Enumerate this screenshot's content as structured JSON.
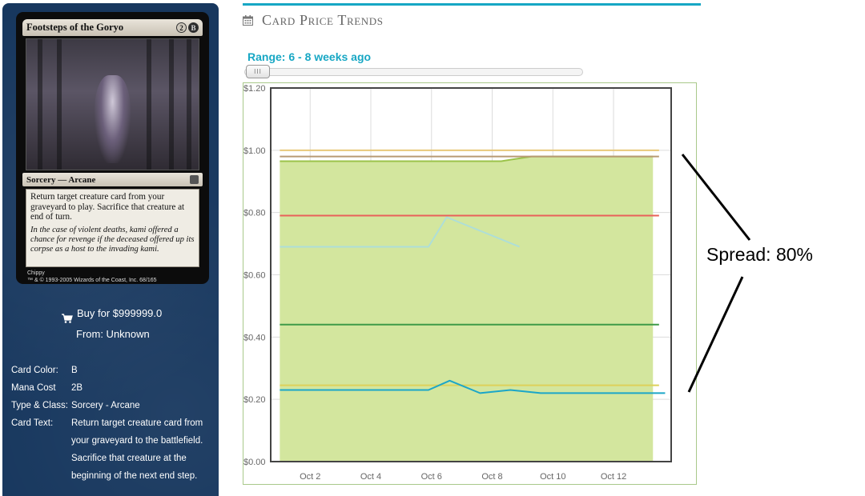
{
  "card": {
    "name": "Footsteps of the Goryo",
    "mana_symbols": [
      "2",
      "B"
    ],
    "type_line": "Sorcery — Arcane",
    "rules_text": "Return target creature card from your graveyard to play. Sacrifice that creature at end of turn.",
    "flavor_text": "In the case of violent deaths, kami offered a chance for revenge if the deceased offered up its corpse as a host to the invading kami.",
    "artist": "Chippy",
    "copyright": "™ & © 1993-2005 Wizards of the Coast, Inc. 68/165"
  },
  "buy": {
    "label": "Buy for $999999.0",
    "from": "From: Unknown"
  },
  "details": [
    {
      "label": "Card Color:",
      "value": "B"
    },
    {
      "label": "Mana Cost",
      "value": "2B"
    },
    {
      "label": "Type & Class:",
      "value": "Sorcery - Arcane"
    },
    {
      "label": "Card Text:",
      "value": "Return target creature card from your graveyard to the battlefield. Sacrifice that creature at the beginning of the next end step."
    }
  ],
  "section": {
    "title": "Card Price Trends",
    "range_label": "Range: 6 - 8 weeks ago",
    "slider_grip": "III"
  },
  "annotation": {
    "text": "Spread: 80%"
  },
  "colors": {
    "accent": "#17a7c4",
    "panel": "#17375e",
    "area_fill": "#d3e69e"
  },
  "chart_data": {
    "type": "line",
    "x_ticks": [
      "Oct 2",
      "Oct 4",
      "Oct 6",
      "Oct 8",
      "Oct 10",
      "Oct 12"
    ],
    "x_range": [
      0.7,
      13.9
    ],
    "y_ticks": [
      "$0.00",
      "$0.20",
      "$0.40",
      "$0.60",
      "$0.80",
      "$1.00",
      "$1.20"
    ],
    "ylim": [
      0,
      1.2
    ],
    "grid": true,
    "series": [
      {
        "color": "#e8c87a",
        "kind": "line",
        "x": [
          1,
          13.5
        ],
        "y": [
          1.0,
          1.0
        ]
      },
      {
        "color": "#b89a74",
        "kind": "line",
        "x": [
          1,
          13.5
        ],
        "y": [
          0.98,
          0.98
        ]
      },
      {
        "color": "#9bc34a",
        "kind": "area",
        "x": [
          1,
          8.3,
          9.3,
          13.3
        ],
        "y": [
          0.965,
          0.965,
          0.98,
          0.98
        ]
      },
      {
        "color": "#e8615a",
        "kind": "line",
        "x": [
          1,
          13.5
        ],
        "y": [
          0.79,
          0.79
        ]
      },
      {
        "color": "#aeded8",
        "kind": "line",
        "x": [
          1,
          5.9,
          6.5,
          8.9
        ],
        "y": [
          0.69,
          0.69,
          0.785,
          0.69
        ]
      },
      {
        "color": "#3e9a48",
        "kind": "line",
        "x": [
          1,
          13.5
        ],
        "y": [
          0.44,
          0.44
        ]
      },
      {
        "color": "#ddd15a",
        "kind": "line",
        "x": [
          1,
          13.5
        ],
        "y": [
          0.245,
          0.245
        ]
      },
      {
        "color": "#1ba6c8",
        "kind": "line",
        "x": [
          1,
          5.9,
          6.6,
          7.6,
          8.6,
          9.6,
          13.7
        ],
        "y": [
          0.23,
          0.23,
          0.26,
          0.22,
          0.23,
          0.22,
          0.22
        ]
      }
    ]
  }
}
